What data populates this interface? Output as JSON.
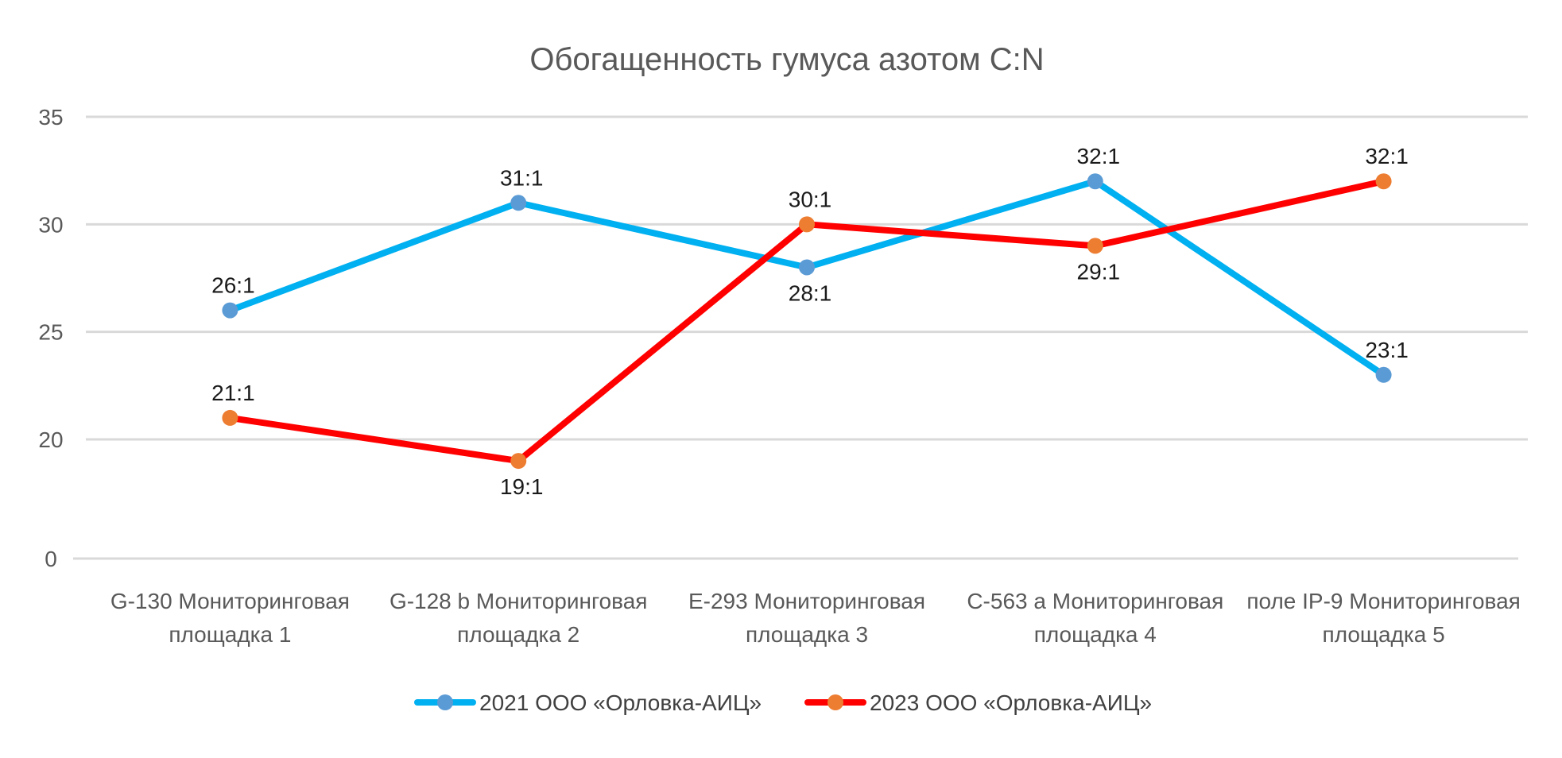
{
  "chart_data": {
    "type": "line",
    "title": "Обогащенность гумуса азотом  C:N",
    "categories": [
      [
        "G-130 Мониторинговая",
        "площадка 1"
      ],
      [
        "G-128 b Мониторинговая",
        "площадка 2"
      ],
      [
        "E-293 Мониторинговая",
        "площадка 3"
      ],
      [
        "C-563 a Мониторинговая",
        "площадка 4"
      ],
      [
        "поле IP-9 Мониторинговая",
        "площадка 5"
      ]
    ],
    "y_ticks": [
      0,
      20,
      25,
      30,
      35
    ],
    "ylim": [
      0,
      35
    ],
    "axis_break": true,
    "grid": true,
    "legend_position": "bottom",
    "series": [
      {
        "name": "2021 ООО «Орловка-АИЦ»",
        "values": [
          26,
          31,
          28,
          32,
          23
        ],
        "labels": [
          "26:1",
          "31:1",
          "28:1",
          "32:1",
          "23:1"
        ],
        "label_pos": [
          "above",
          "above",
          "below",
          "above",
          "above"
        ],
        "line_color": "#00b0f0",
        "marker_color": "#5b9bd5"
      },
      {
        "name": "2023 ООО «Орловка-АИЦ»",
        "values": [
          21,
          19,
          30,
          29,
          32
        ],
        "labels": [
          "21:1",
          "19:1",
          "30:1",
          "29:1",
          "32:1"
        ],
        "label_pos": [
          "above",
          "below",
          "above",
          "below",
          "above"
        ],
        "line_color": "#ff0000",
        "marker_color": "#ed7d31"
      }
    ]
  }
}
